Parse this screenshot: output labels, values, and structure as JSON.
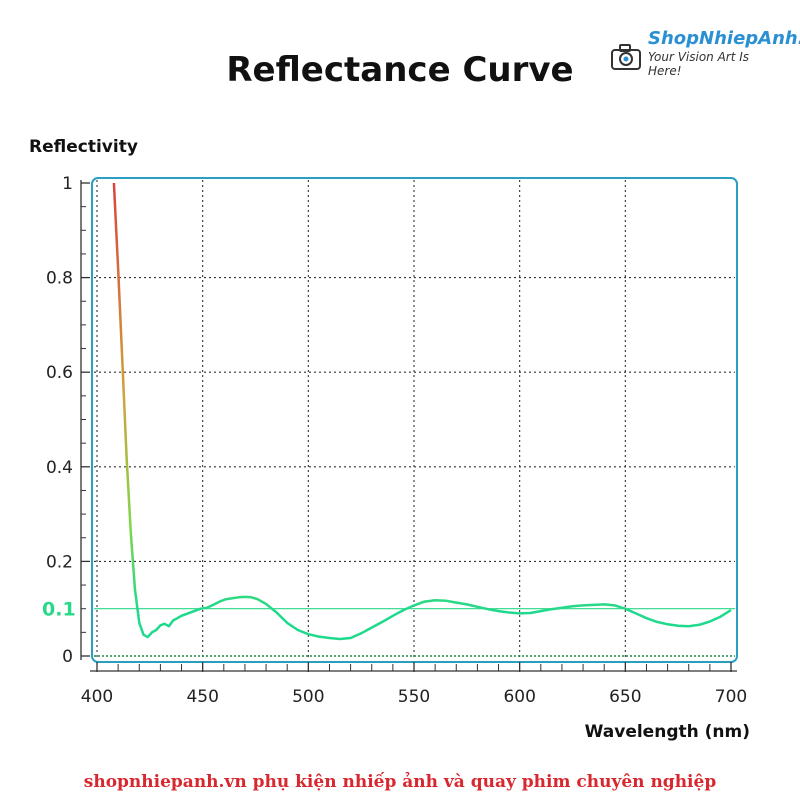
{
  "logo": {
    "name": "ShopNhiepAnh.vn",
    "tagline": "Your Vision Art Is Here!"
  },
  "footer": {
    "text": "shopnhiepanh.vn phụ kiện nhiếp ảnh và quay phim chuyên nghiệp"
  },
  "chart_data": {
    "type": "line",
    "title": "Reflectance Curve",
    "xlabel": "Wavelength (nm)",
    "ylabel": "Reflectivity",
    "xlim": [
      400,
      700
    ],
    "ylim": [
      0,
      1
    ],
    "xticks": [
      "400",
      "450",
      "500",
      "550",
      "600",
      "650",
      "700"
    ],
    "yticks": [
      "0",
      "0.2",
      "0.4",
      "0.6",
      "0.8",
      "1"
    ],
    "reference_line": {
      "value": 0.1,
      "label": "0.1",
      "color": "#2ad88a"
    },
    "grid": true,
    "colors": {
      "frame": "#2b9fc0",
      "curve_low": "#1fd98c",
      "curve_mid": "#b9c63a",
      "curve_high": "#d9433c",
      "grid": "#333333"
    },
    "series": [
      {
        "x": [
          408,
          410,
          412,
          414,
          416,
          418,
          420,
          422,
          424,
          426,
          428,
          430,
          432,
          434,
          436,
          438,
          440,
          443,
          446,
          449,
          452,
          455,
          458,
          461,
          464,
          467,
          470,
          473,
          476,
          480,
          485,
          490,
          495,
          500,
          505,
          510,
          515,
          520,
          525,
          530,
          535,
          540,
          545,
          550,
          555,
          560,
          565,
          570,
          575,
          580,
          585,
          590,
          595,
          600,
          605,
          610,
          615,
          620,
          625,
          630,
          635,
          640,
          645,
          650,
          655,
          660,
          665,
          670,
          675,
          680,
          685,
          690,
          695,
          700
        ],
        "y": [
          1.0,
          0.82,
          0.62,
          0.42,
          0.26,
          0.14,
          0.07,
          0.045,
          0.04,
          0.05,
          0.055,
          0.065,
          0.068,
          0.063,
          0.075,
          0.08,
          0.085,
          0.09,
          0.095,
          0.1,
          0.102,
          0.108,
          0.115,
          0.12,
          0.122,
          0.124,
          0.125,
          0.124,
          0.12,
          0.11,
          0.092,
          0.07,
          0.055,
          0.046,
          0.041,
          0.038,
          0.036,
          0.038,
          0.048,
          0.06,
          0.072,
          0.085,
          0.097,
          0.107,
          0.115,
          0.118,
          0.117,
          0.113,
          0.109,
          0.104,
          0.099,
          0.095,
          0.092,
          0.09,
          0.091,
          0.095,
          0.099,
          0.102,
          0.105,
          0.107,
          0.108,
          0.109,
          0.107,
          0.1,
          0.09,
          0.08,
          0.072,
          0.067,
          0.064,
          0.063,
          0.066,
          0.073,
          0.083,
          0.097
        ]
      }
    ]
  }
}
